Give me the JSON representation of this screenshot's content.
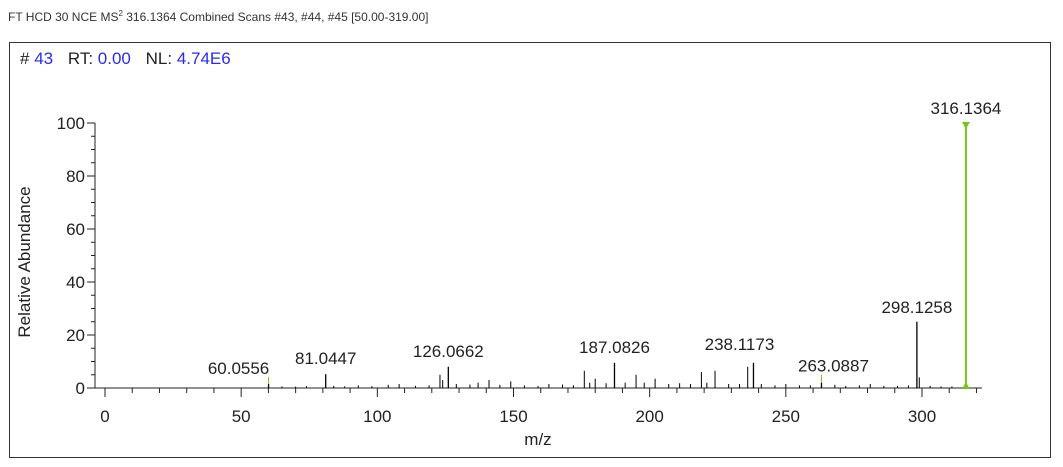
{
  "header": {
    "prefix": "FT HCD 30 NCE MS",
    "superscript": "2",
    "suffix": " 316.1364 Combined Scans #43, #44, #45 [50.00-319.00]"
  },
  "scan_info": {
    "scan_label": "#",
    "scan_value": "43",
    "rt_label": "RT:",
    "rt_value": "0.00",
    "nl_label": "NL:",
    "nl_value": "4.74E6"
  },
  "colors": {
    "peak": "#000000",
    "highlight": "#77c61c",
    "value_text": "#2a2aee"
  },
  "chart_data": {
    "type": "bar",
    "xlabel": "m/z",
    "ylabel": "Relative Abundance",
    "xlim": [
      -5,
      322
    ],
    "ylim": [
      0,
      100
    ],
    "x_ticks": [
      0,
      50,
      100,
      150,
      200,
      250,
      300
    ],
    "y_ticks": [
      0,
      20,
      40,
      60,
      80,
      100
    ],
    "labeled_peaks": [
      {
        "mz": 60.0556,
        "label": "60.0556",
        "intensity": 1.5
      },
      {
        "mz": 81.0447,
        "label": "81.0447",
        "intensity": 5.2
      },
      {
        "mz": 126.0662,
        "label": "126.0662",
        "intensity": 8.0
      },
      {
        "mz": 187.0826,
        "label": "187.0826",
        "intensity": 9.5
      },
      {
        "mz": 238.1173,
        "label": "238.1173",
        "intensity": 9.5
      },
      {
        "mz": 263.0887,
        "label": "263.0887",
        "intensity": 2.0
      },
      {
        "mz": 298.1258,
        "label": "298.1258",
        "intensity": 25.0
      },
      {
        "mz": 316.1364,
        "label": "316.1364",
        "intensity": 100,
        "highlight": true
      }
    ],
    "minor_peaks": [
      {
        "mz": 65.0,
        "intensity": 0.6
      },
      {
        "mz": 70.0,
        "intensity": 0.5
      },
      {
        "mz": 74.0,
        "intensity": 0.7
      },
      {
        "mz": 84.0,
        "intensity": 0.8
      },
      {
        "mz": 88.0,
        "intensity": 0.6
      },
      {
        "mz": 93.0,
        "intensity": 1.0
      },
      {
        "mz": 98.0,
        "intensity": 0.7
      },
      {
        "mz": 104.0,
        "intensity": 1.2
      },
      {
        "mz": 108.0,
        "intensity": 1.5
      },
      {
        "mz": 114.0,
        "intensity": 0.8
      },
      {
        "mz": 119.0,
        "intensity": 1.0
      },
      {
        "mz": 123.0,
        "intensity": 5.0
      },
      {
        "mz": 124.0,
        "intensity": 3.0
      },
      {
        "mz": 129.0,
        "intensity": 1.5
      },
      {
        "mz": 134.0,
        "intensity": 1.3
      },
      {
        "mz": 137.0,
        "intensity": 2.0
      },
      {
        "mz": 141.0,
        "intensity": 3.0
      },
      {
        "mz": 145.0,
        "intensity": 1.2
      },
      {
        "mz": 149.0,
        "intensity": 2.5
      },
      {
        "mz": 154.0,
        "intensity": 1.0
      },
      {
        "mz": 159.0,
        "intensity": 0.8
      },
      {
        "mz": 163.0,
        "intensity": 1.5
      },
      {
        "mz": 168.0,
        "intensity": 1.3
      },
      {
        "mz": 172.0,
        "intensity": 1.0
      },
      {
        "mz": 176.0,
        "intensity": 6.5
      },
      {
        "mz": 178.0,
        "intensity": 2.0
      },
      {
        "mz": 180.0,
        "intensity": 3.5
      },
      {
        "mz": 184.0,
        "intensity": 1.8
      },
      {
        "mz": 191.0,
        "intensity": 2.0
      },
      {
        "mz": 195.0,
        "intensity": 5.0
      },
      {
        "mz": 198.0,
        "intensity": 2.0
      },
      {
        "mz": 202.0,
        "intensity": 3.5
      },
      {
        "mz": 207.0,
        "intensity": 1.5
      },
      {
        "mz": 211.0,
        "intensity": 1.8
      },
      {
        "mz": 215.0,
        "intensity": 1.5
      },
      {
        "mz": 219.0,
        "intensity": 6.0
      },
      {
        "mz": 221.0,
        "intensity": 2.0
      },
      {
        "mz": 224.0,
        "intensity": 6.5
      },
      {
        "mz": 229.0,
        "intensity": 1.5
      },
      {
        "mz": 233.0,
        "intensity": 1.5
      },
      {
        "mz": 236.0,
        "intensity": 8.0
      },
      {
        "mz": 241.0,
        "intensity": 1.5
      },
      {
        "mz": 246.0,
        "intensity": 1.0
      },
      {
        "mz": 250.0,
        "intensity": 1.5
      },
      {
        "mz": 255.0,
        "intensity": 1.0
      },
      {
        "mz": 259.0,
        "intensity": 1.0
      },
      {
        "mz": 268.0,
        "intensity": 1.2
      },
      {
        "mz": 272.0,
        "intensity": 0.8
      },
      {
        "mz": 277.0,
        "intensity": 1.0
      },
      {
        "mz": 281.0,
        "intensity": 1.5
      },
      {
        "mz": 286.0,
        "intensity": 0.8
      },
      {
        "mz": 291.0,
        "intensity": 0.8
      },
      {
        "mz": 295.0,
        "intensity": 1.0
      },
      {
        "mz": 299.0,
        "intensity": 4.0
      },
      {
        "mz": 303.0,
        "intensity": 0.8
      },
      {
        "mz": 307.0,
        "intensity": 0.6
      },
      {
        "mz": 311.0,
        "intensity": 0.6
      }
    ]
  }
}
